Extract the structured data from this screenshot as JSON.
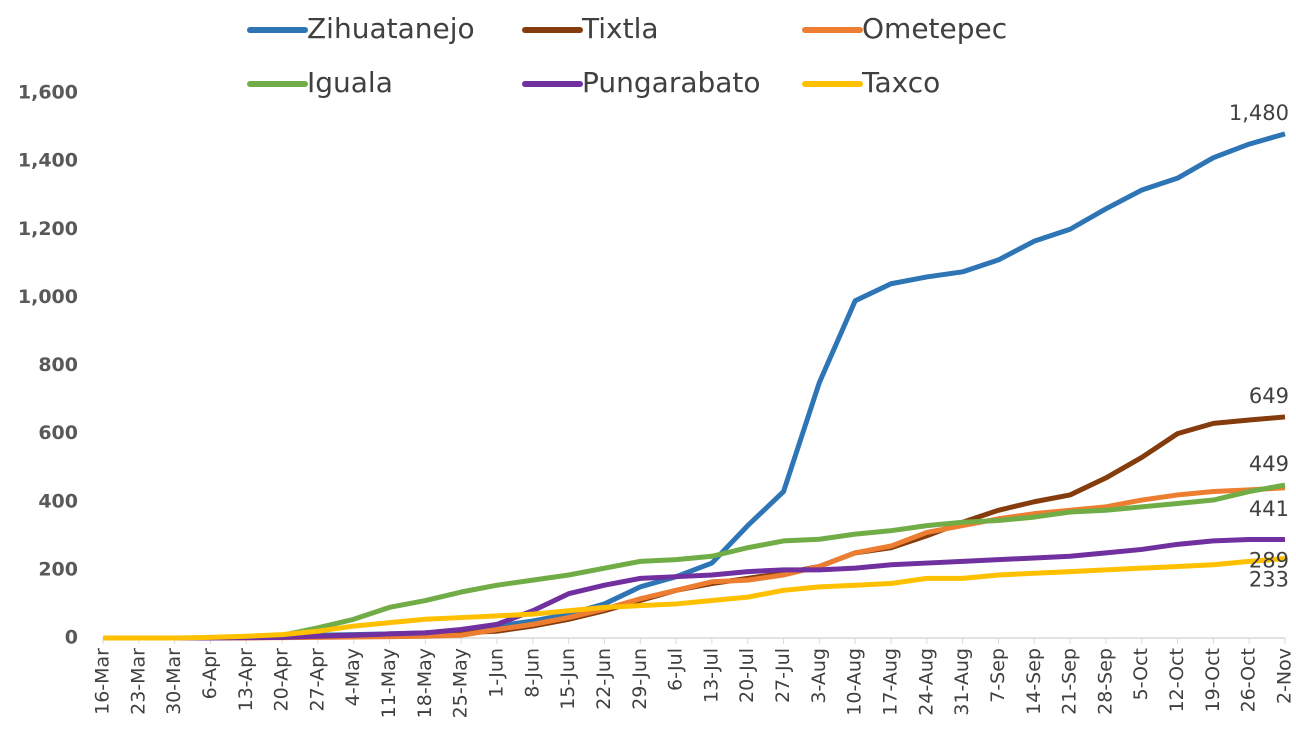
{
  "chart_data": {
    "type": "line",
    "categories": [
      "16-Mar",
      "23-Mar",
      "30-Mar",
      "6-Apr",
      "13-Apr",
      "20-Apr",
      "27-Apr",
      "4-May",
      "11-May",
      "18-May",
      "25-May",
      "1-Jun",
      "8-Jun",
      "15-Jun",
      "22-Jun",
      "29-Jun",
      "6-Jul",
      "13-Jul",
      "20-Jul",
      "27-Jul",
      "3-Aug",
      "10-Aug",
      "17-Aug",
      "24-Aug",
      "31-Aug",
      "7-Sep",
      "14-Sep",
      "21-Sep",
      "28-Sep",
      "5-Oct",
      "12-Oct",
      "19-Oct",
      "26-Oct",
      "2-Nov"
    ],
    "series": [
      {
        "name": "Zihuatanejo",
        "color": "#2e75b6",
        "values": [
          0,
          0,
          0,
          0,
          2,
          5,
          8,
          10,
          12,
          15,
          20,
          35,
          50,
          70,
          100,
          150,
          180,
          220,
          330,
          430,
          750,
          990,
          1040,
          1060,
          1075,
          1110,
          1165,
          1200,
          1260,
          1315,
          1350,
          1410,
          1450,
          1480
        ],
        "end_label": {
          "value": 1480,
          "label": "1,480"
        }
      },
      {
        "name": "Tixtla",
        "color": "#843c0c",
        "values": [
          0,
          0,
          0,
          0,
          1,
          3,
          5,
          8,
          10,
          12,
          15,
          20,
          35,
          55,
          80,
          110,
          140,
          160,
          175,
          190,
          210,
          250,
          265,
          300,
          340,
          375,
          400,
          420,
          470,
          530,
          600,
          630,
          640,
          649
        ],
        "end_label": 649
      },
      {
        "name": "Ometepec",
        "color": "#ed7d31",
        "values": [
          0,
          0,
          0,
          0,
          0,
          1,
          2,
          3,
          4,
          5,
          8,
          25,
          40,
          60,
          85,
          115,
          140,
          165,
          170,
          185,
          210,
          250,
          270,
          310,
          330,
          350,
          365,
          375,
          385,
          405,
          420,
          430,
          435,
          441
        ],
        "end_label": 441
      },
      {
        "name": "Iguala",
        "color": "#70ad47",
        "values": [
          0,
          0,
          0,
          0,
          2,
          8,
          30,
          55,
          90,
          110,
          135,
          155,
          170,
          185,
          205,
          225,
          230,
          240,
          265,
          285,
          290,
          305,
          315,
          330,
          340,
          345,
          355,
          370,
          375,
          385,
          395,
          405,
          430,
          449
        ],
        "end_label": 449
      },
      {
        "name": "Pungarabato",
        "color": "#7030a0",
        "values": [
          0,
          0,
          0,
          0,
          1,
          2,
          5,
          8,
          12,
          15,
          25,
          40,
          80,
          130,
          155,
          175,
          180,
          185,
          195,
          200,
          200,
          205,
          215,
          220,
          225,
          230,
          235,
          240,
          250,
          260,
          275,
          285,
          289,
          289
        ],
        "end_label": 289
      },
      {
        "name": "Taxco",
        "color": "#ffc000",
        "values": [
          0,
          0,
          0,
          2,
          5,
          10,
          20,
          35,
          45,
          55,
          60,
          65,
          70,
          80,
          90,
          95,
          100,
          110,
          120,
          140,
          150,
          155,
          160,
          175,
          175,
          185,
          190,
          195,
          200,
          205,
          210,
          215,
          225,
          233
        ],
        "end_label": 233
      }
    ],
    "ylim": [
      0,
      1600
    ],
    "yticks": [
      0,
      200,
      400,
      600,
      800,
      {
        "value": 1000,
        "label": "1,000"
      },
      {
        "value": 1200,
        "label": "1,200"
      },
      {
        "value": 1400,
        "label": "1,400"
      },
      {
        "value": 1600,
        "label": "1,600"
      }
    ],
    "grid": false,
    "legend_position": "top"
  }
}
